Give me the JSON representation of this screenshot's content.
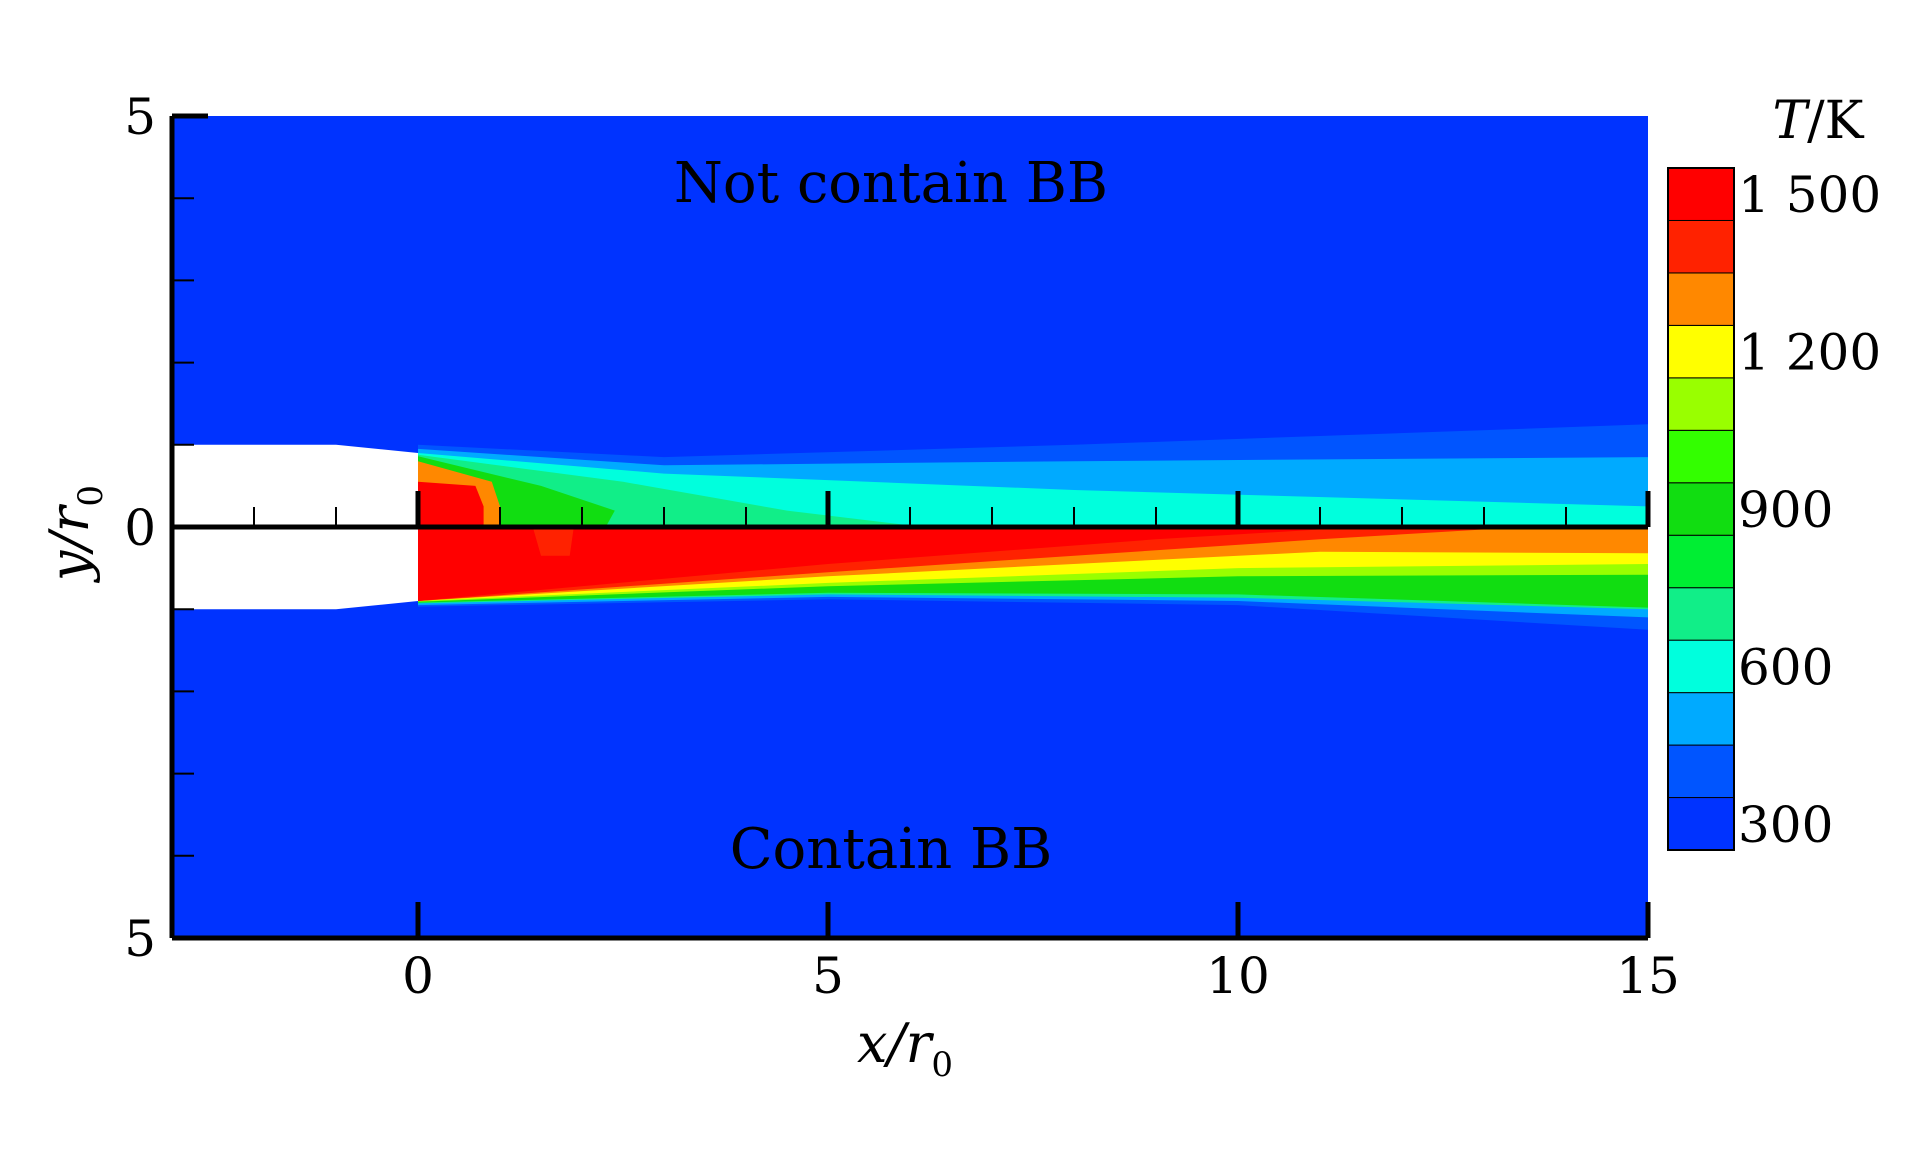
{
  "chart_data": {
    "type": "heatmap",
    "title": "",
    "panel_labels": {
      "top": "Not contain BB",
      "bottom": "Contain BB"
    },
    "xlabel": {
      "main": "x/r",
      "sub": "0"
    },
    "ylabel": {
      "main": "y/r",
      "sub": "0"
    },
    "xlim": [
      -3,
      15
    ],
    "ylim": [
      -5,
      5
    ],
    "x_ticks": [
      "0",
      "5",
      "10",
      "15"
    ],
    "x_tick_values": [
      0,
      5,
      10,
      15
    ],
    "y_ticks": [
      "5",
      "0",
      "5"
    ],
    "y_tick_values": [
      5,
      0,
      -5
    ],
    "nozzle": {
      "radius": 1,
      "exit_x": 0
    },
    "colorbar": {
      "title": {
        "main": "T",
        "unit": "/K"
      },
      "ticks": [
        "1 500",
        "1 200",
        "900",
        "600",
        "300"
      ],
      "tick_values": [
        1500,
        1200,
        900,
        600,
        300
      ],
      "levels": [
        {
          "T": 300,
          "color": "#0033ff"
        },
        {
          "T": 400,
          "color": "#0055ff"
        },
        {
          "T": 500,
          "color": "#00aaff"
        },
        {
          "T": 600,
          "color": "#00ffdd"
        },
        {
          "T": 700,
          "color": "#11ee88"
        },
        {
          "T": 800,
          "color": "#00ee33"
        },
        {
          "T": 900,
          "color": "#11dd11"
        },
        {
          "T": 1000,
          "color": "#33ff00"
        },
        {
          "T": 1100,
          "color": "#99ff00"
        },
        {
          "T": 1200,
          "color": "#ffff00"
        },
        {
          "T": 1300,
          "color": "#ff8800"
        },
        {
          "T": 1400,
          "color": "#ff2200"
        },
        {
          "T": 1500,
          "color": "#ff0000"
        }
      ]
    },
    "fields": {
      "top": {
        "core_T": 1500,
        "core_length": 1,
        "jet_T_range": [
          600,
          950
        ],
        "ambient_T": 300
      },
      "bottom": {
        "core_T": 1500,
        "core_length": 11,
        "jet_T_range": [
          800,
          1500
        ],
        "ambient_T": 300
      }
    }
  }
}
